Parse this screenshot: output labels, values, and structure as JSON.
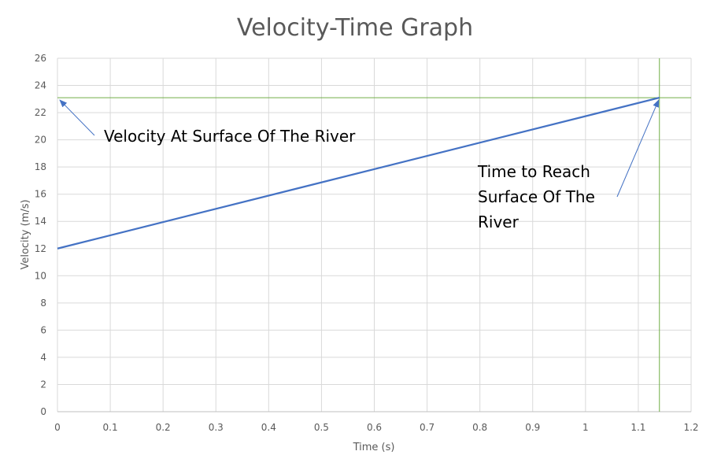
{
  "chart_data": {
    "type": "line",
    "title": "Velocity-Time Graph",
    "xlabel": "Time (s)",
    "ylabel": "Velocity (m/s)",
    "xlim": [
      0,
      1.2
    ],
    "ylim": [
      0,
      26
    ],
    "grid": true,
    "x_ticks": [
      "0",
      "0.1",
      "0.2",
      "0.3",
      "0.4",
      "0.5",
      "0.6",
      "0.7",
      "0.8",
      "0.9",
      "1",
      "1.1",
      "1.2"
    ],
    "y_ticks": [
      "0",
      "2",
      "4",
      "6",
      "8",
      "10",
      "12",
      "14",
      "16",
      "18",
      "20",
      "22",
      "24",
      "26"
    ],
    "series": [
      {
        "name": "Velocity",
        "color": "#4472C4",
        "x": [
          0,
          1.14
        ],
        "y": [
          12,
          23.1
        ]
      }
    ],
    "reference_lines": [
      {
        "orientation": "horizontal",
        "value": 23.1,
        "color": "#70AD47"
      },
      {
        "orientation": "vertical",
        "value": 1.14,
        "color": "#70AD47"
      }
    ],
    "annotations": [
      {
        "lines": [
          "Velocity At Surface Of The River"
        ],
        "points_to": [
          0,
          23.1
        ]
      },
      {
        "lines": [
          "Time to Reach",
          "Surface Of The",
          "River"
        ],
        "points_to": [
          1.14,
          23.1
        ]
      }
    ]
  }
}
